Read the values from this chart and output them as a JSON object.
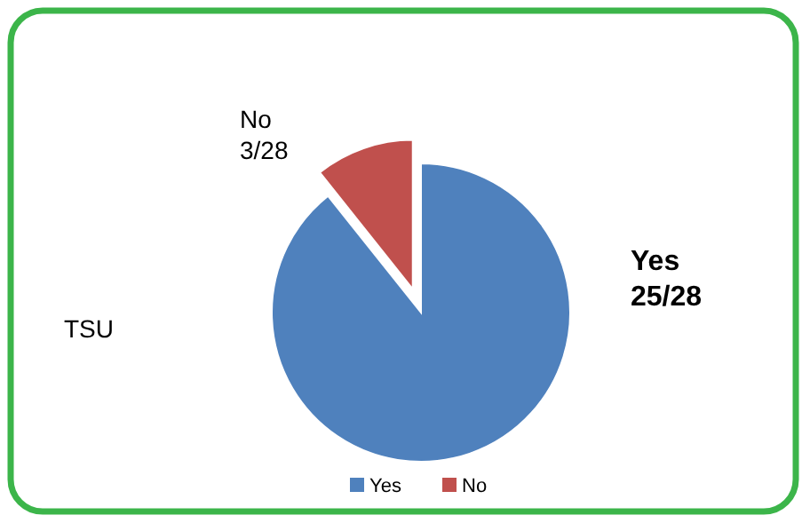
{
  "chart_data": {
    "type": "pie",
    "categories": [
      "Yes",
      "No"
    ],
    "values": [
      25,
      3
    ],
    "colors": [
      "#4f81bd",
      "#c0504d"
    ],
    "value_labels": [
      "25/28",
      "3/28"
    ],
    "annotations": [
      "TSU"
    ],
    "legend": "bottom"
  }
}
